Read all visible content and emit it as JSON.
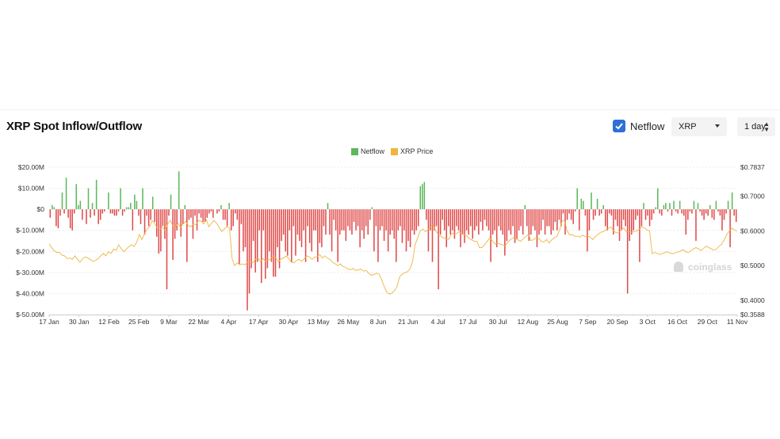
{
  "header": {
    "title": "XRP Spot Inflow/Outflow"
  },
  "controls": {
    "checkbox_label": "Netflow",
    "checkbox_checked": true,
    "coin_select": "XRP",
    "interval_select": "1 day",
    "chevron_icon": "chevron-down-icon",
    "updown_icon": "up-down-icon"
  },
  "legend": [
    {
      "label": "Netflow",
      "color": "#5cb85c"
    },
    {
      "label": "XRP Price",
      "color": "#f0b440"
    }
  ],
  "watermark": "coinglass",
  "colors": {
    "inflow": "#5cb85c",
    "outflow": "#e04a4a",
    "price": "#f0b440"
  },
  "chart_data": {
    "type": "bar",
    "title": "XRP Spot Inflow/Outflow",
    "left_axis": {
      "ticks": [
        "$20.00M",
        "$10.00M",
        "$0",
        "$-10.00M",
        "$-20.00M",
        "$-30.00M",
        "$-40.00M",
        "$-50.00M"
      ],
      "range": [
        -50,
        20
      ],
      "unit": "$M"
    },
    "right_axis": {
      "ticks": [
        "$0.7837",
        "$0.7000",
        "$0.6000",
        "$0.5000",
        "$0.4000",
        "$0.3588"
      ],
      "range": [
        0.3588,
        0.7837
      ]
    },
    "x_ticks": [
      "17 Jan",
      "30 Jan",
      "12 Feb",
      "25 Feb",
      "9 Mar",
      "22 Mar",
      "4 Apr",
      "17 Apr",
      "30 Apr",
      "13 May",
      "26 May",
      "8 Jun",
      "21 Jun",
      "4 Jul",
      "17 Jul",
      "30 Jul",
      "12 Aug",
      "25 Aug",
      "7 Sep",
      "20 Sep",
      "3 Oct",
      "16 Oct",
      "29 Oct",
      "11 Nov"
    ],
    "grid": true,
    "legend_position": "top-center",
    "series": [
      {
        "name": "Netflow",
        "unit": "$M",
        "values": [
          -4,
          2,
          1,
          -8,
          -9,
          -3,
          8,
          -2,
          15,
          -4,
          -9,
          -10,
          -2,
          12,
          2,
          4,
          -5,
          0,
          -7,
          10,
          -4,
          3,
          -3,
          14,
          -7,
          -5,
          -2,
          -1,
          0,
          8,
          -2,
          -2,
          -3,
          -3,
          -1,
          10,
          -3,
          -1,
          1,
          1,
          3,
          -10,
          7,
          4,
          -3,
          -7,
          10,
          -12,
          -3,
          -8,
          -5,
          6,
          -6,
          -13,
          -21,
          -20,
          -8,
          -14,
          -38,
          -3,
          7,
          -24,
          -14,
          -10,
          18,
          -13,
          -7,
          2,
          -25,
          -5,
          -4,
          -14,
          -3,
          -10,
          -2,
          -4,
          -6,
          -6,
          -4,
          -2,
          -1,
          -4,
          0,
          -2,
          -1,
          2,
          -5,
          -5,
          -8,
          3,
          -10,
          -8,
          -2,
          -5,
          -26,
          -7,
          -20,
          -18,
          -48,
          -40,
          -28,
          -15,
          -30,
          -25,
          -10,
          -35,
          -10,
          -33,
          -28,
          -20,
          -25,
          -32,
          -32,
          -18,
          -28,
          -15,
          -12,
          -20,
          -22,
          -10,
          -25,
          -8,
          -22,
          -12,
          -15,
          -18,
          -10,
          -25,
          -8,
          -16,
          -20,
          -10,
          -10,
          -25,
          -16,
          -18,
          -8,
          -12,
          3,
          -12,
          -20,
          -5,
          -10,
          -25,
          -12,
          -10,
          -10,
          -15,
          -8,
          -10,
          -12,
          -6,
          -10,
          -8,
          -18,
          -10,
          -14,
          -8,
          -12,
          -5,
          1,
          -20,
          -8,
          -25,
          -10,
          -8,
          -15,
          -10,
          -20,
          -12,
          -10,
          -14,
          -25,
          -10,
          -8,
          -16,
          -10,
          -20,
          -15,
          -18,
          -10,
          -12,
          -10,
          -8,
          11,
          12,
          13,
          -5,
          -20,
          -10,
          -25,
          -10,
          -8,
          -38,
          -12,
          -5,
          -10,
          -18,
          -8,
          -12,
          -10,
          -14,
          -8,
          -10,
          -18,
          -12,
          -16,
          -10,
          -12,
          -8,
          -14,
          -10,
          -8,
          -12,
          -6,
          -10,
          -5,
          -8,
          -10,
          -25,
          -12,
          -10,
          -18,
          -8,
          -10,
          -12,
          -22,
          -15,
          -10,
          -12,
          -8,
          -16,
          -14,
          -10,
          -8,
          -12,
          2,
          -8,
          -15,
          -12,
          -8,
          -10,
          -18,
          -12,
          -10,
          -5,
          -12,
          -8,
          -8,
          -12,
          -10,
          -6,
          -10,
          -5,
          -8,
          -2,
          -12,
          -5,
          -2,
          -5,
          -7,
          -1,
          10,
          -10,
          5,
          4,
          -3,
          -20,
          -10,
          8,
          -5,
          -3,
          5,
          -3,
          -2,
          2,
          -8,
          -10,
          -2,
          -3,
          -12,
          -5,
          -8,
          -15,
          -10,
          -5,
          -8,
          -40,
          -15,
          -12,
          -10,
          -5,
          -3,
          -25,
          -8,
          3,
          -5,
          -3,
          -8,
          -5,
          -2,
          1,
          10,
          -2,
          -3,
          2,
          3,
          -1,
          3,
          -3,
          4,
          -1,
          -2,
          4,
          -2,
          -3,
          -12,
          -5,
          -1,
          -2,
          4,
          -15,
          3,
          -1,
          -3,
          -5,
          -2,
          -3,
          2,
          -4,
          -5,
          4,
          -1,
          -3,
          -10,
          -5,
          -2,
          4,
          -18,
          8,
          -3,
          -6
        ]
      },
      {
        "name": "XRP Price",
        "values": [
          0.563,
          0.552,
          0.542,
          0.538,
          0.538,
          0.53,
          0.528,
          0.52,
          0.522,
          0.518,
          0.528,
          0.518,
          0.51,
          0.52,
          0.525,
          0.522,
          0.518,
          0.512,
          0.515,
          0.52,
          0.528,
          0.535,
          0.528,
          0.54,
          0.535,
          0.548,
          0.544,
          0.56,
          0.548,
          0.54,
          0.548,
          0.555,
          0.56,
          0.555,
          0.568,
          0.59,
          0.575,
          0.592,
          0.605,
          0.612,
          0.63,
          0.62,
          0.608,
          0.605,
          0.61,
          0.602,
          0.62,
          0.63,
          0.615,
          0.61,
          0.622,
          0.61,
          0.62,
          0.628,
          0.615,
          0.612,
          0.62,
          0.618,
          0.63,
          0.628,
          0.62,
          0.632,
          0.612,
          0.622,
          0.63,
          0.622,
          0.61,
          0.598,
          0.606,
          0.612,
          0.608,
          0.52,
          0.5,
          0.508,
          0.502,
          0.505,
          0.502,
          0.51,
          0.512,
          0.508,
          0.518,
          0.522,
          0.512,
          0.52,
          0.512,
          0.516,
          0.52,
          0.528,
          0.522,
          0.51,
          0.52,
          0.522,
          0.528,
          0.52,
          0.51,
          0.508,
          0.515,
          0.518,
          0.512,
          0.52,
          0.528,
          0.525,
          0.518,
          0.524,
          0.526,
          0.532,
          0.522,
          0.528,
          0.522,
          0.518,
          0.51,
          0.505,
          0.5,
          0.505,
          0.498,
          0.495,
          0.49,
          0.488,
          0.492,
          0.486,
          0.488,
          0.49,
          0.484,
          0.486,
          0.478,
          0.472,
          0.474,
          0.478,
          0.476,
          0.46,
          0.44,
          0.424,
          0.418,
          0.42,
          0.428,
          0.44,
          0.468,
          0.475,
          0.48,
          0.482,
          0.49,
          0.51,
          0.56,
          0.58,
          0.6,
          0.605,
          0.598,
          0.604,
          0.612,
          0.618,
          0.6,
          0.59,
          0.585,
          0.58,
          0.578,
          0.575,
          0.59,
          0.595,
          0.592,
          0.598,
          0.592,
          0.59,
          0.586,
          0.578,
          0.574,
          0.57,
          0.57,
          0.552,
          0.552,
          0.56,
          0.57,
          0.58,
          0.572,
          0.562,
          0.565,
          0.562,
          0.56,
          0.556,
          0.568,
          0.575,
          0.58,
          0.578,
          0.574,
          0.57,
          0.578,
          0.584,
          0.59,
          0.572,
          0.575,
          0.58,
          0.578,
          0.57,
          0.568,
          0.575,
          0.565,
          0.574,
          0.58,
          0.584,
          0.6,
          0.628,
          0.63,
          0.6,
          0.588,
          0.59,
          0.584,
          0.585,
          0.582,
          0.588,
          0.584,
          0.585,
          0.582,
          0.575,
          0.584,
          0.59,
          0.596,
          0.598,
          0.603,
          0.607,
          0.612,
          0.6,
          0.595,
          0.594,
          0.603,
          0.608,
          0.597,
          0.599,
          0.596,
          0.598,
          0.6,
          0.605,
          0.612,
          0.608,
          0.603,
          0.6,
          0.535,
          0.538,
          0.535,
          0.532,
          0.535,
          0.538,
          0.54,
          0.536,
          0.534,
          0.537,
          0.539,
          0.542,
          0.546,
          0.54,
          0.538,
          0.542,
          0.548,
          0.552,
          0.548,
          0.544,
          0.55,
          0.556,
          0.552,
          0.548,
          0.545,
          0.548,
          0.556,
          0.562,
          0.575,
          0.59,
          0.6,
          0.608,
          0.602,
          0.6
        ]
      }
    ]
  }
}
